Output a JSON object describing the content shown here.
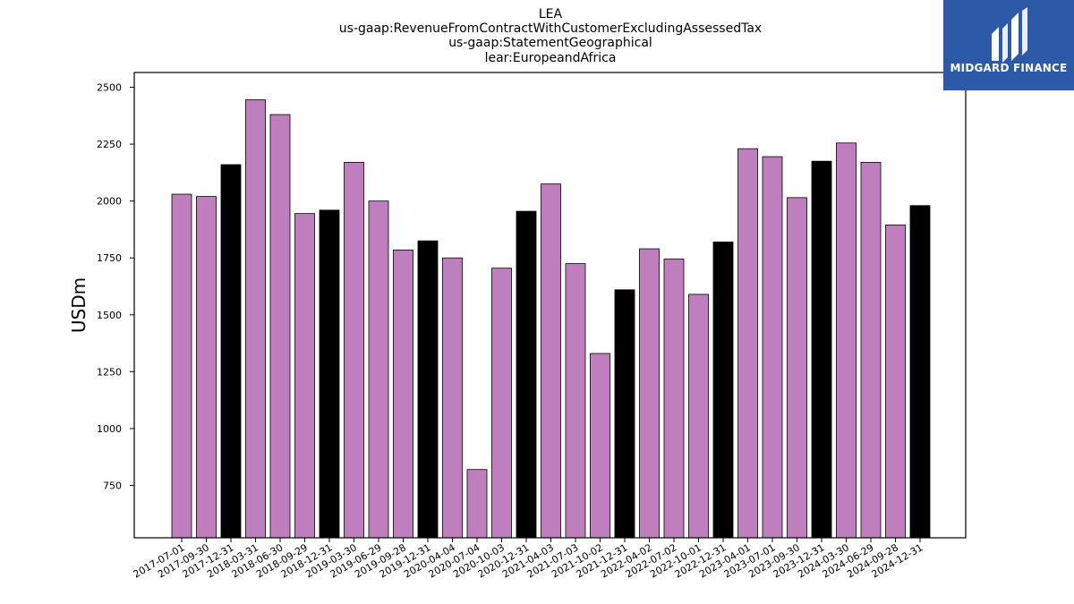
{
  "chart_data": {
    "type": "bar",
    "title_lines": [
      "LEA",
      "us-gaap:RevenueFromContractWithCustomerExcludingAssessedTax",
      "us-gaap:StatementGeographical",
      "lear:EuropeandAfrica"
    ],
    "xlabel": "",
    "ylabel": "USDm",
    "ylim": [
      520,
      2565
    ],
    "yticks": [
      750,
      1000,
      1250,
      1500,
      1750,
      2000,
      2250,
      2500
    ],
    "categories": [
      "2017-07-01",
      "2017-09-30",
      "2017-12-31",
      "2018-03-31",
      "2018-06-30",
      "2018-09-29",
      "2018-12-31",
      "2019-03-30",
      "2019-06-29",
      "2019-09-28",
      "2019-12-31",
      "2020-04-04",
      "2020-07-04",
      "2020-10-03",
      "2020-12-31",
      "2021-04-03",
      "2021-07-03",
      "2021-10-02",
      "2021-12-31",
      "2022-04-02",
      "2022-07-02",
      "2022-10-01",
      "2022-12-31",
      "2023-04-01",
      "2023-07-01",
      "2023-09-30",
      "2023-12-31",
      "2024-03-30",
      "2024-06-29",
      "2024-09-28",
      "2024-12-31"
    ],
    "values": [
      2030,
      2020,
      2160,
      2445,
      2380,
      1945,
      1960,
      2170,
      2000,
      1785,
      1825,
      1750,
      820,
      1705,
      1955,
      2075,
      1725,
      1330,
      1610,
      1790,
      1745,
      1590,
      1820,
      2230,
      2195,
      2015,
      2175,
      2255,
      2170,
      1895,
      1980
    ],
    "fiscal_year_end": [
      false,
      false,
      true,
      false,
      false,
      false,
      true,
      false,
      false,
      false,
      true,
      false,
      false,
      false,
      true,
      false,
      false,
      false,
      true,
      false,
      false,
      false,
      true,
      false,
      false,
      false,
      true,
      false,
      false,
      false,
      true
    ],
    "colors": {
      "quarter": "#bf7fbf",
      "year_end": "#000000",
      "edge": "#000000"
    },
    "grid": false,
    "legend": "none"
  },
  "logo": {
    "text": "MIDGARD FINANCE",
    "background": "#2c5aa8"
  }
}
